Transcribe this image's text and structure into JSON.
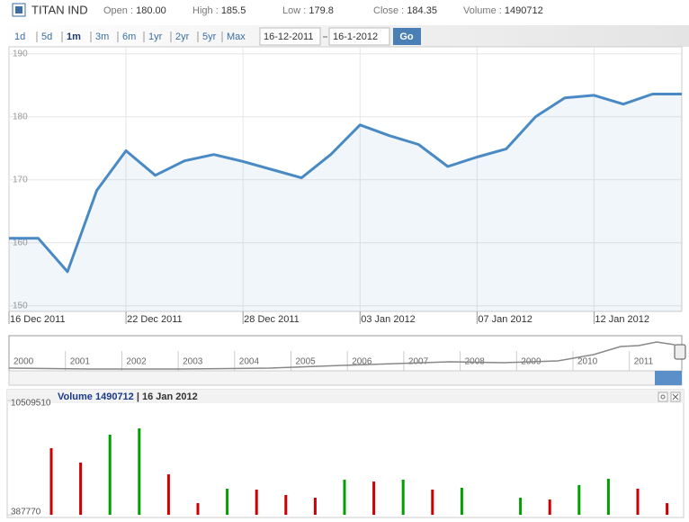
{
  "header": {
    "name": "TITAN IND",
    "stats": [
      {
        "label": "Open :",
        "value": "180.00"
      },
      {
        "label": "High :",
        "value": "185.5"
      },
      {
        "label": "Low :",
        "value": "179.8"
      },
      {
        "label": "Close :",
        "value": "184.35"
      },
      {
        "label": "Volume :",
        "value": "1490712"
      }
    ]
  },
  "toolbar": {
    "ranges": [
      "1d",
      "5d",
      "1m",
      "3m",
      "6m",
      "1yr",
      "2yr",
      "5yr",
      "Max"
    ],
    "active": "1m",
    "from": "16-12-2011",
    "to": "16-1-2012",
    "go": "Go"
  },
  "navigator": {
    "labels": [
      "2000",
      "2001",
      "2002",
      "2003",
      "2004",
      "2005",
      "2006",
      "2007",
      "2008",
      "2009",
      "2010",
      "2011"
    ]
  },
  "chart_data": [
    {
      "type": "area",
      "color": "#4a8ac4",
      "categories": [
        "16 Dec 2011",
        null,
        null,
        null,
        "22 Dec 2011",
        null,
        null,
        null,
        "28 Dec 2011",
        null,
        null,
        null,
        "03 Jan 2012",
        null,
        null,
        null,
        "07 Jan 2012",
        null,
        null,
        null,
        "12 Jan 2012",
        null,
        null,
        null
      ],
      "values": [
        160.7,
        160.7,
        155.4,
        168.3,
        174.6,
        170.7,
        173.0,
        174.0,
        172.9,
        171.6,
        170.3,
        174.0,
        178.7,
        177.0,
        175.6,
        172.1,
        173.6,
        174.9,
        180.0,
        183.0,
        183.4,
        182.0,
        183.6,
        183.6
      ],
      "ylim": [
        149.1,
        191.1
      ],
      "yticks": [
        150,
        160,
        170,
        180,
        190
      ],
      "grid": true
    },
    {
      "type": "bar",
      "title": "Volume 1490712",
      "subtitle": "| 16 Jan 2012",
      "values": [
        6290000,
        5010000,
        7480000,
        8040000,
        3970000,
        1420000,
        2700000,
        2620000,
        2140000,
        1900000,
        3500000,
        3330000,
        3500000,
        2620000,
        2780000,
        null,
        1900000,
        1740000,
        3020000,
        3580000,
        2700000,
        1420000
      ],
      "colors": [
        "#cc0000",
        "#cc0000",
        "#00a000",
        "#00a000",
        "#cc0000",
        "#cc0000",
        "#00a000",
        "#cc0000",
        "#cc0000",
        "#cc0000",
        "#00a000",
        "#cc0000",
        "#00a000",
        "#cc0000",
        "#00a000",
        null,
        "#00a000",
        "#cc0000",
        "#00a000",
        "#00a000",
        "#cc0000",
        "#cc0000"
      ],
      "ylim": [
        387770,
        10509510
      ],
      "yticks": [
        387770,
        10509510
      ]
    }
  ]
}
